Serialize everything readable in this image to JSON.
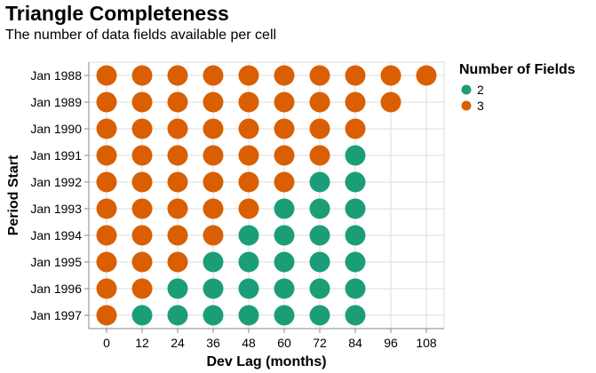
{
  "chart_data": {
    "type": "scatter",
    "title": "Triangle Completeness",
    "subtitle": "The number of data fields available per cell",
    "xlabel": "Dev Lag (months)",
    "ylabel": "Period Start",
    "x_ticks": [
      0,
      12,
      24,
      36,
      48,
      60,
      72,
      84,
      96,
      108
    ],
    "xlim": [
      -6,
      114
    ],
    "y_categories": [
      "Jan 1988",
      "Jan 1989",
      "Jan 1990",
      "Jan 1991",
      "Jan 1992",
      "Jan 1993",
      "Jan 1994",
      "Jan 1995",
      "Jan 1996",
      "Jan 1997"
    ],
    "grid": true,
    "legend": {
      "title": "Number of Fields",
      "position": "right",
      "entries": [
        {
          "label": "2",
          "color": "#1b9e77"
        },
        {
          "label": "3",
          "color": "#d95f02"
        }
      ]
    },
    "colors": {
      "2": "#1b9e77",
      "3": "#d95f02"
    },
    "rows": [
      {
        "period": "Jan 1988",
        "fields": [
          3,
          3,
          3,
          3,
          3,
          3,
          3,
          3,
          3,
          3
        ]
      },
      {
        "period": "Jan 1989",
        "fields": [
          3,
          3,
          3,
          3,
          3,
          3,
          3,
          3,
          3
        ]
      },
      {
        "period": "Jan 1990",
        "fields": [
          3,
          3,
          3,
          3,
          3,
          3,
          3,
          3
        ]
      },
      {
        "period": "Jan 1991",
        "fields": [
          3,
          3,
          3,
          3,
          3,
          3,
          3,
          2
        ]
      },
      {
        "period": "Jan 1992",
        "fields": [
          3,
          3,
          3,
          3,
          3,
          3,
          2,
          2
        ]
      },
      {
        "period": "Jan 1993",
        "fields": [
          3,
          3,
          3,
          3,
          3,
          2,
          2,
          2
        ]
      },
      {
        "period": "Jan 1994",
        "fields": [
          3,
          3,
          3,
          3,
          2,
          2,
          2,
          2
        ]
      },
      {
        "period": "Jan 1995",
        "fields": [
          3,
          3,
          3,
          2,
          2,
          2,
          2,
          2
        ]
      },
      {
        "period": "Jan 1996",
        "fields": [
          3,
          3,
          2,
          2,
          2,
          2,
          2,
          2
        ]
      },
      {
        "period": "Jan 1997",
        "fields": [
          3,
          2,
          2,
          2,
          2,
          2,
          2,
          2
        ]
      }
    ]
  }
}
